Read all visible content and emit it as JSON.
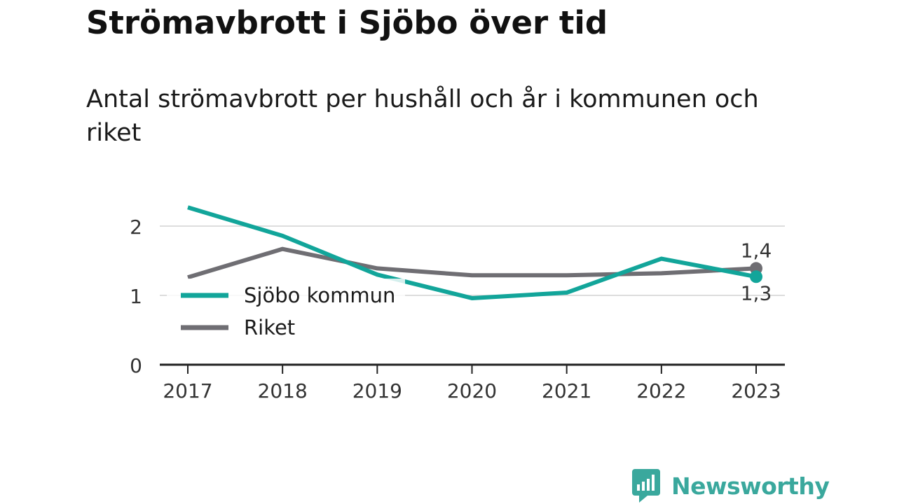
{
  "title": "Strömavbrott i Sjöbo över tid",
  "subtitle": "Antal strömavbrott per hushåll och år i kommunen och riket",
  "brand": {
    "name": "Newsworthy",
    "color": "#3aa89d",
    "icon": "newsworthy-bar-chart-icon"
  },
  "chart_data": {
    "type": "line",
    "x": [
      "2017",
      "2018",
      "2019",
      "2020",
      "2021",
      "2022",
      "2023"
    ],
    "yticks": [
      {
        "value": 0,
        "label": "0"
      },
      {
        "value": 1,
        "label": "1"
      },
      {
        "value": 2,
        "label": "2"
      }
    ],
    "ylim": [
      0,
      2.4
    ],
    "grid": true,
    "legend_position": "bottom-left inside plot",
    "series": [
      {
        "name": "Sjöbo kommun",
        "color": "#12a59a",
        "values": [
          2.27,
          1.86,
          1.3,
          0.96,
          1.04,
          1.53,
          1.27
        ],
        "end_label": "1,3"
      },
      {
        "name": "Riket",
        "color": "#6f6e73",
        "values": [
          1.26,
          1.67,
          1.39,
          1.29,
          1.29,
          1.32,
          1.39
        ],
        "end_label": "1,4"
      }
    ]
  }
}
